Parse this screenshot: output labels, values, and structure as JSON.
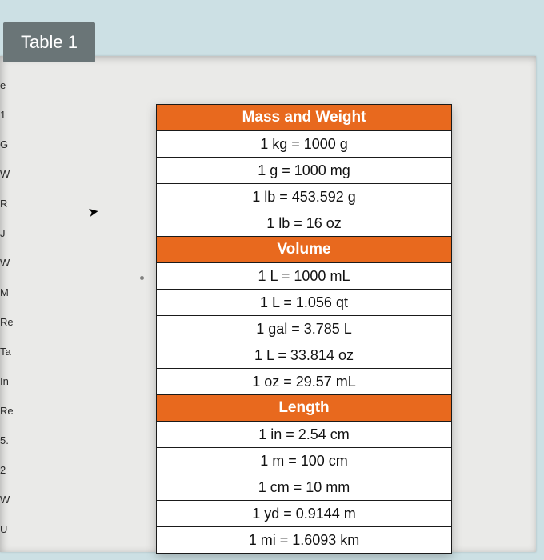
{
  "title": "Table 1",
  "header_color": "#e8691e",
  "left_fragments": [
    "e",
    "1",
    "G",
    "W",
    "R",
    "J",
    "W",
    "M",
    "Re",
    "Ta",
    "In",
    "Re",
    "5.",
    "2",
    "W",
    "U"
  ],
  "table": {
    "sections": [
      {
        "heading": "Mass and Weight",
        "rows": [
          "1 kg = 1000 g",
          "1 g = 1000 mg",
          "1 lb = 453.592 g",
          "1 lb = 16 oz"
        ]
      },
      {
        "heading": "Volume",
        "rows": [
          "1 L = 1000 mL",
          "1 L = 1.056 qt",
          "1 gal = 3.785 L",
          "1 L = 33.814  oz",
          "1 oz = 29.57 mL"
        ]
      },
      {
        "heading": "Length",
        "rows": [
          "1 in = 2.54 cm",
          "1 m = 100 cm",
          "1 cm = 10 mm",
          "1 yd = 0.9144 m",
          "1 mi = 1.6093 km"
        ]
      }
    ]
  }
}
